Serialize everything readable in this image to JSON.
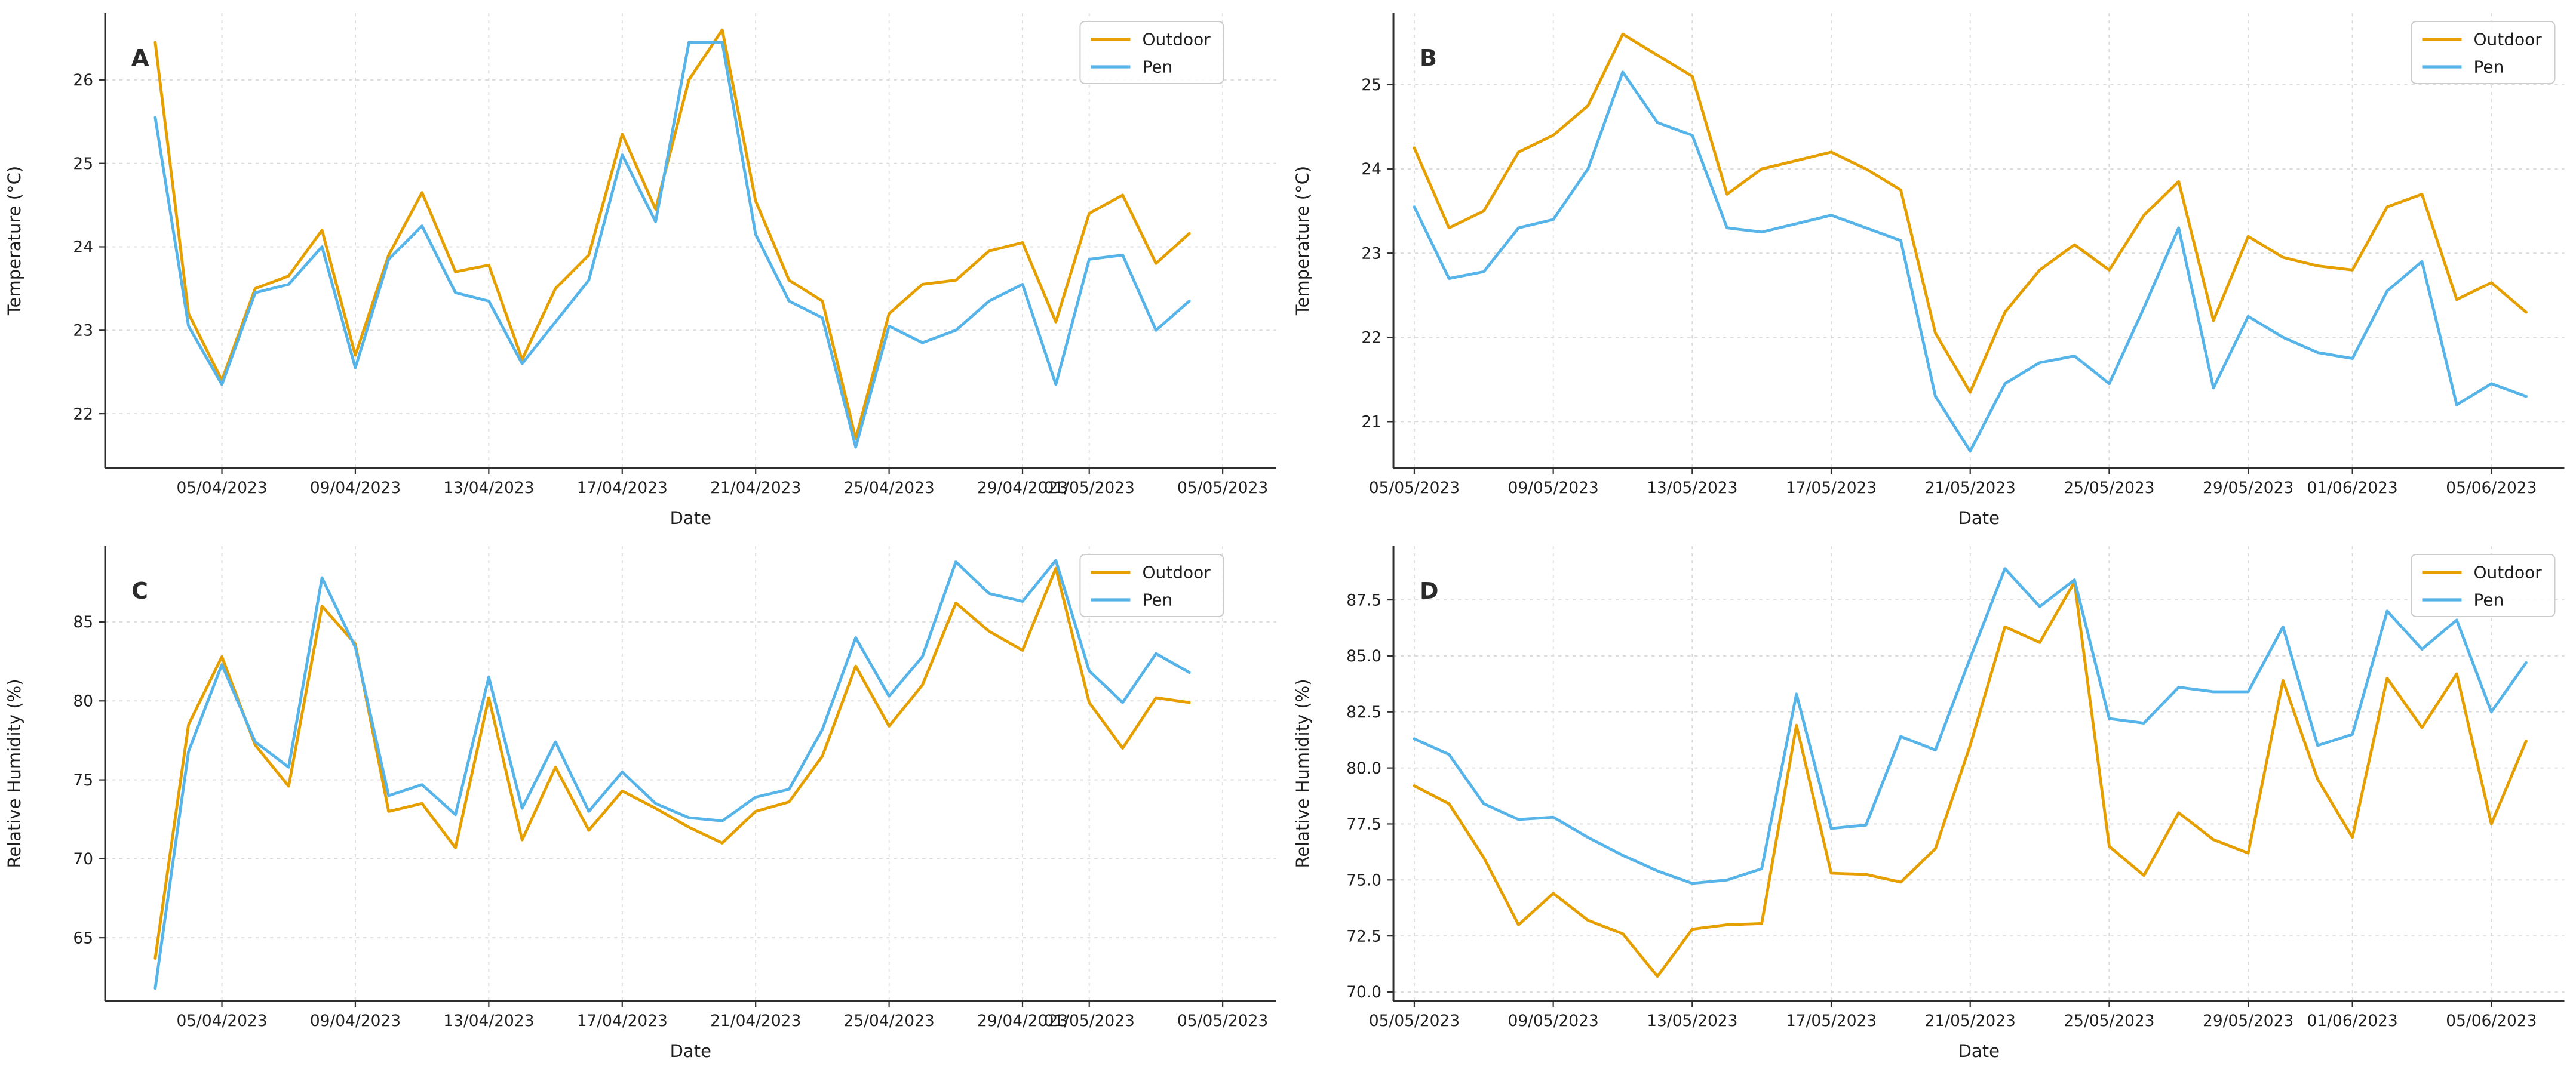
{
  "figure": {
    "background": "#ffffff",
    "panel_letters": [
      "A",
      "B",
      "C",
      "D"
    ]
  },
  "colors": {
    "outdoor": "#E69F00",
    "pen": "#56B4E9",
    "grid": "#d9d9d9",
    "axis": "#2e2e2e",
    "text": "#1f1f1f"
  },
  "legend": {
    "entries": [
      {
        "label": "Outdoor",
        "color_key": "outdoor"
      },
      {
        "label": "Pen",
        "color_key": "pen"
      }
    ],
    "position": "top-right"
  },
  "chart_data": [
    {
      "type": "line",
      "panel_label": "A",
      "xlabel": "Date",
      "ylabel": "Temperature (°C)",
      "grid": true,
      "legend_position": "top-right",
      "legend_right_inset": 44,
      "xlim": [
        -1.5,
        33.6
      ],
      "ylim": [
        21.35,
        26.8
      ],
      "yticks": [
        {
          "pos": 22,
          "label": "22"
        },
        {
          "pos": 23,
          "label": "23"
        },
        {
          "pos": 24,
          "label": "24"
        },
        {
          "pos": 25,
          "label": "25"
        },
        {
          "pos": 26,
          "label": "26"
        }
      ],
      "xticks": [
        {
          "pos": 2,
          "label": "05/04/2023"
        },
        {
          "pos": 6,
          "label": "09/04/2023"
        },
        {
          "pos": 10,
          "label": "13/04/2023"
        },
        {
          "pos": 14,
          "label": "17/04/2023"
        },
        {
          "pos": 18,
          "label": "21/04/2023"
        },
        {
          "pos": 22,
          "label": "25/04/2023"
        },
        {
          "pos": 26,
          "label": "29/04/2023"
        },
        {
          "pos": 28,
          "label": "01/05/2023"
        },
        {
          "pos": 32,
          "label": "05/05/2023"
        }
      ],
      "series": [
        {
          "name": "Outdoor",
          "color_key": "outdoor",
          "values": [
            26.45,
            23.2,
            22.4,
            23.5,
            23.65,
            24.2,
            22.7,
            23.9,
            24.65,
            23.7,
            23.78,
            22.65,
            23.5,
            23.9,
            25.35,
            24.45,
            26.0,
            26.6,
            24.55,
            23.6,
            23.35,
            21.7,
            23.2,
            23.55,
            23.6,
            23.95,
            24.05,
            23.1,
            24.4,
            24.62,
            23.8,
            24.16
          ]
        },
        {
          "name": "Pen",
          "color_key": "pen",
          "values": [
            25.55,
            23.05,
            22.35,
            23.45,
            23.55,
            24.0,
            22.55,
            23.85,
            24.25,
            23.45,
            23.35,
            22.6,
            23.1,
            23.6,
            25.1,
            24.3,
            26.45,
            26.45,
            24.15,
            23.35,
            23.15,
            21.6,
            23.05,
            22.85,
            23.0,
            23.35,
            23.55,
            22.35,
            23.85,
            23.9,
            23.0,
            23.35
          ]
        }
      ]
    },
    {
      "type": "line",
      "panel_label": "B",
      "xlabel": "Date",
      "ylabel": "Temperature (°C)",
      "grid": true,
      "legend_position": "top-right",
      "legend_right_inset": 8,
      "xlim": [
        -0.6,
        33.1
      ],
      "ylim": [
        20.45,
        25.85
      ],
      "yticks": [
        {
          "pos": 21,
          "label": "21"
        },
        {
          "pos": 22,
          "label": "22"
        },
        {
          "pos": 23,
          "label": "23"
        },
        {
          "pos": 24,
          "label": "24"
        },
        {
          "pos": 25,
          "label": "25"
        }
      ],
      "xticks": [
        {
          "pos": 0,
          "label": "05/05/2023"
        },
        {
          "pos": 4,
          "label": "09/05/2023"
        },
        {
          "pos": 8,
          "label": "13/05/2023"
        },
        {
          "pos": 12,
          "label": "17/05/2023"
        },
        {
          "pos": 16,
          "label": "21/05/2023"
        },
        {
          "pos": 20,
          "label": "25/05/2023"
        },
        {
          "pos": 24,
          "label": "29/05/2023"
        },
        {
          "pos": 27,
          "label": "01/06/2023"
        },
        {
          "pos": 31,
          "label": "05/06/2023"
        }
      ],
      "series": [
        {
          "name": "Outdoor",
          "color_key": "outdoor",
          "values": [
            24.25,
            23.3,
            23.5,
            24.2,
            24.4,
            24.75,
            25.6,
            25.35,
            25.1,
            23.7,
            24.0,
            24.1,
            24.2,
            24.0,
            23.75,
            22.05,
            21.35,
            22.3,
            22.8,
            23.1,
            22.8,
            23.45,
            23.85,
            22.2,
            23.2,
            22.95,
            22.85,
            22.8,
            23.55,
            23.7,
            22.45,
            22.65,
            22.3
          ]
        },
        {
          "name": "Pen",
          "color_key": "pen",
          "values": [
            23.55,
            22.7,
            22.78,
            23.3,
            23.4,
            24.0,
            25.15,
            24.55,
            24.4,
            23.3,
            23.25,
            23.35,
            23.45,
            23.3,
            23.15,
            21.3,
            20.65,
            21.45,
            21.7,
            21.78,
            21.45,
            22.35,
            23.3,
            21.4,
            22.25,
            22.0,
            21.82,
            21.75,
            22.55,
            22.9,
            21.2,
            21.45,
            21.3
          ]
        }
      ]
    },
    {
      "type": "line",
      "panel_label": "C",
      "xlabel": "Date",
      "ylabel": "Relative Humidity (%)",
      "grid": true,
      "legend_position": "top-right",
      "legend_right_inset": 44,
      "xlim": [
        -1.5,
        33.6
      ],
      "ylim": [
        61.0,
        89.8
      ],
      "yticks": [
        {
          "pos": 65,
          "label": "65"
        },
        {
          "pos": 70,
          "label": "70"
        },
        {
          "pos": 75,
          "label": "75"
        },
        {
          "pos": 80,
          "label": "80"
        },
        {
          "pos": 85,
          "label": "85"
        }
      ],
      "xticks": [
        {
          "pos": 2,
          "label": "05/04/2023"
        },
        {
          "pos": 6,
          "label": "09/04/2023"
        },
        {
          "pos": 10,
          "label": "13/04/2023"
        },
        {
          "pos": 14,
          "label": "17/04/2023"
        },
        {
          "pos": 18,
          "label": "21/04/2023"
        },
        {
          "pos": 22,
          "label": "25/04/2023"
        },
        {
          "pos": 26,
          "label": "29/04/2023"
        },
        {
          "pos": 28,
          "label": "01/05/2023"
        },
        {
          "pos": 32,
          "label": "05/05/2023"
        }
      ],
      "series": [
        {
          "name": "Outdoor",
          "color_key": "outdoor",
          "values": [
            63.7,
            78.5,
            82.8,
            77.2,
            74.6,
            86.0,
            83.6,
            73.0,
            73.5,
            70.7,
            80.2,
            71.2,
            75.8,
            71.8,
            74.3,
            73.2,
            72.0,
            71.0,
            73.0,
            73.6,
            76.5,
            82.2,
            78.4,
            81.0,
            86.2,
            84.4,
            83.2,
            88.4,
            79.9,
            77.0,
            80.2,
            79.9
          ]
        },
        {
          "name": "Pen",
          "color_key": "pen",
          "values": [
            61.8,
            76.8,
            82.3,
            77.4,
            75.8,
            87.8,
            83.4,
            74.0,
            74.7,
            72.8,
            81.5,
            73.2,
            77.4,
            73.0,
            75.5,
            73.5,
            72.6,
            72.4,
            73.9,
            74.4,
            78.2,
            84.0,
            80.3,
            82.8,
            88.8,
            86.8,
            86.3,
            88.9,
            81.9,
            79.9,
            83.0,
            81.8
          ]
        }
      ]
    },
    {
      "type": "line",
      "panel_label": "D",
      "xlabel": "Date",
      "ylabel": "Relative Humidity (%)",
      "grid": true,
      "legend_position": "top-right",
      "legend_right_inset": 8,
      "xlim": [
        -0.6,
        33.1
      ],
      "ylim": [
        69.6,
        89.9
      ],
      "yticks": [
        {
          "pos": 70.0,
          "label": "70.0"
        },
        {
          "pos": 72.5,
          "label": "72.5"
        },
        {
          "pos": 75.0,
          "label": "75.0"
        },
        {
          "pos": 77.5,
          "label": "77.5"
        },
        {
          "pos": 80.0,
          "label": "80.0"
        },
        {
          "pos": 82.5,
          "label": "82.5"
        },
        {
          "pos": 85.0,
          "label": "85.0"
        },
        {
          "pos": 87.5,
          "label": "87.5"
        }
      ],
      "xticks": [
        {
          "pos": 0,
          "label": "05/05/2023"
        },
        {
          "pos": 4,
          "label": "09/05/2023"
        },
        {
          "pos": 8,
          "label": "13/05/2023"
        },
        {
          "pos": 12,
          "label": "17/05/2023"
        },
        {
          "pos": 16,
          "label": "21/05/2023"
        },
        {
          "pos": 20,
          "label": "25/05/2023"
        },
        {
          "pos": 24,
          "label": "29/05/2023"
        },
        {
          "pos": 27,
          "label": "01/06/2023"
        },
        {
          "pos": 31,
          "label": "05/06/2023"
        }
      ],
      "series": [
        {
          "name": "Outdoor",
          "color_key": "outdoor",
          "values": [
            79.2,
            78.4,
            76.0,
            73.0,
            74.4,
            73.2,
            72.6,
            70.7,
            72.8,
            73.0,
            73.05,
            81.9,
            75.3,
            75.25,
            74.9,
            76.4,
            81.0,
            86.3,
            85.6,
            88.3,
            76.5,
            75.2,
            78.0,
            76.8,
            76.2,
            83.9,
            79.5,
            76.9,
            84.0,
            81.8,
            84.2,
            77.5,
            81.2
          ]
        },
        {
          "name": "Pen",
          "color_key": "pen",
          "values": [
            81.3,
            80.6,
            78.4,
            77.7,
            77.8,
            76.9,
            76.1,
            75.4,
            74.85,
            75.0,
            75.5,
            83.3,
            77.3,
            77.45,
            81.4,
            80.8,
            84.9,
            88.9,
            87.2,
            88.4,
            82.2,
            82.0,
            83.6,
            83.4,
            83.4,
            86.3,
            81.0,
            81.5,
            87.0,
            85.3,
            86.6,
            82.5,
            84.7
          ]
        }
      ]
    }
  ]
}
